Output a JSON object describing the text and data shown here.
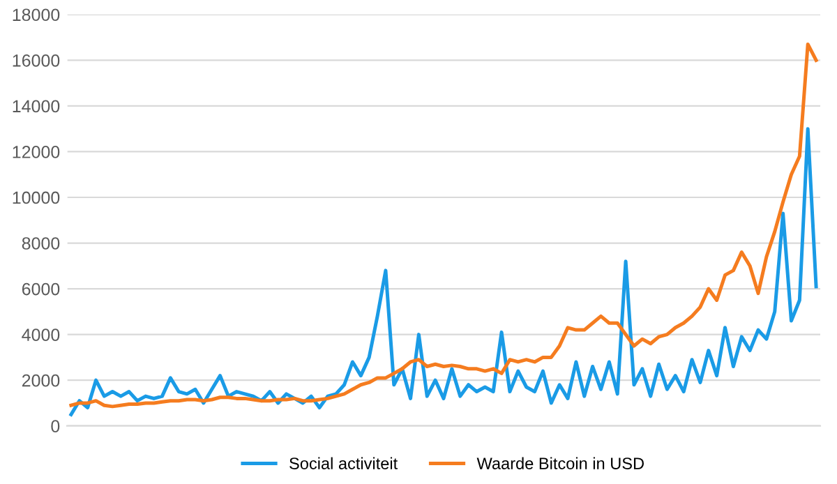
{
  "chart_data": {
    "type": "line",
    "categories": [
      null,
      null,
      null,
      null,
      null,
      null,
      null,
      null,
      null,
      null,
      null,
      null,
      null,
      null,
      null,
      null,
      null,
      null,
      null,
      null,
      null,
      null,
      null,
      null,
      null,
      null,
      null,
      null,
      null,
      null,
      null,
      null,
      null,
      null,
      null,
      null,
      null,
      null,
      null,
      null,
      null,
      null,
      null,
      null,
      null,
      null,
      null,
      null,
      null,
      null,
      null,
      null,
      null,
      null,
      null,
      null,
      null,
      null,
      null,
      null,
      null,
      null,
      null,
      null,
      null,
      null,
      null,
      null,
      null,
      null,
      null,
      null,
      null,
      null,
      null,
      null,
      null,
      null,
      null,
      null,
      null,
      null,
      null,
      null,
      null,
      null,
      null,
      null,
      null,
      null,
      null
    ],
    "series": [
      {
        "name": "Social activiteit",
        "color": "#1a9be6",
        "values": [
          500,
          1100,
          800,
          2000,
          1300,
          1500,
          1300,
          1500,
          1100,
          1300,
          1200,
          1300,
          2100,
          1500,
          1400,
          1600,
          1000,
          1600,
          2200,
          1300,
          1500,
          1400,
          1300,
          1100,
          1500,
          1000,
          1400,
          1200,
          1000,
          1300,
          800,
          1300,
          1400,
          1800,
          2800,
          2200,
          3000,
          4800,
          6800,
          1800,
          2500,
          1200,
          4000,
          1300,
          2000,
          1200,
          2500,
          1300,
          1800,
          1500,
          1700,
          1500,
          4100,
          1500,
          2400,
          1700,
          1500,
          2400,
          1000,
          1800,
          1200,
          2800,
          1300,
          2600,
          1600,
          2800,
          1400,
          7200,
          1800,
          2500,
          1300,
          2700,
          1600,
          2200,
          1500,
          2900,
          1900,
          3300,
          2200,
          4300,
          2600,
          3900,
          3300,
          4200,
          3800,
          5000,
          9300,
          4600,
          5500,
          13000,
          6100
        ]
      },
      {
        "name": "Waarde Bitcoin in USD",
        "color": "#f57c1f",
        "values": [
          900,
          1000,
          1000,
          1100,
          900,
          850,
          900,
          950,
          950,
          1000,
          1000,
          1050,
          1100,
          1100,
          1150,
          1150,
          1100,
          1150,
          1250,
          1250,
          1200,
          1200,
          1150,
          1100,
          1100,
          1150,
          1150,
          1200,
          1100,
          1100,
          1150,
          1200,
          1300,
          1400,
          1600,
          1800,
          1900,
          2100,
          2100,
          2300,
          2500,
          2800,
          2900,
          2600,
          2700,
          2600,
          2650,
          2600,
          2500,
          2500,
          2400,
          2500,
          2300,
          2900,
          2800,
          2900,
          2800,
          3000,
          3000,
          3500,
          4300,
          4200,
          4200,
          4500,
          4800,
          4500,
          4500,
          4000,
          3500,
          3800,
          3600,
          3900,
          4000,
          4300,
          4500,
          4800,
          5200,
          6000,
          5500,
          6600,
          6800,
          7600,
          7000,
          5800,
          7400,
          8500,
          9800,
          11000,
          11800,
          16700,
          16000
        ]
      }
    ],
    "ylim": [
      0,
      18000
    ],
    "yticks": [
      0,
      2000,
      4000,
      6000,
      8000,
      10000,
      12000,
      14000,
      16000,
      18000
    ],
    "grid": "y",
    "legend": "bottom",
    "marker": "none",
    "line_style": "solid"
  }
}
